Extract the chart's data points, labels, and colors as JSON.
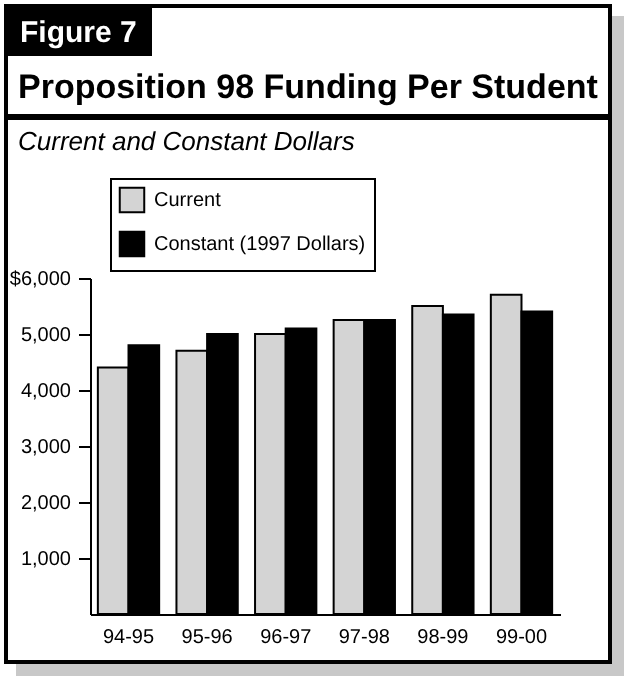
{
  "chart_data": {
    "type": "bar",
    "title": "Proposition 98 Funding Per Student",
    "subtitle": "Current and Constant Dollars",
    "annotations": [
      "Figure 7"
    ],
    "categories": [
      "94-95",
      "95-96",
      "96-97",
      "97-98",
      "98-99",
      "99-00"
    ],
    "series": [
      {
        "name": "Current",
        "color": "#d4d4d4",
        "values": [
          4400,
          4700,
          5000,
          5250,
          5500,
          5700
        ]
      },
      {
        "name": "Constant (1997 Dollars)",
        "color": "#000000",
        "values": [
          4800,
          5000,
          5100,
          5250,
          5350,
          5400
        ]
      }
    ],
    "ylim": [
      0,
      6000
    ],
    "yticks": [
      {
        "value": 1000,
        "label": "1,000"
      },
      {
        "value": 2000,
        "label": "2,000"
      },
      {
        "value": 3000,
        "label": "3,000"
      },
      {
        "value": 4000,
        "label": "4,000"
      },
      {
        "value": 5000,
        "label": "5,000"
      },
      {
        "value": 6000,
        "label": "$6,000"
      }
    ],
    "grid": false,
    "legend": "top left"
  }
}
